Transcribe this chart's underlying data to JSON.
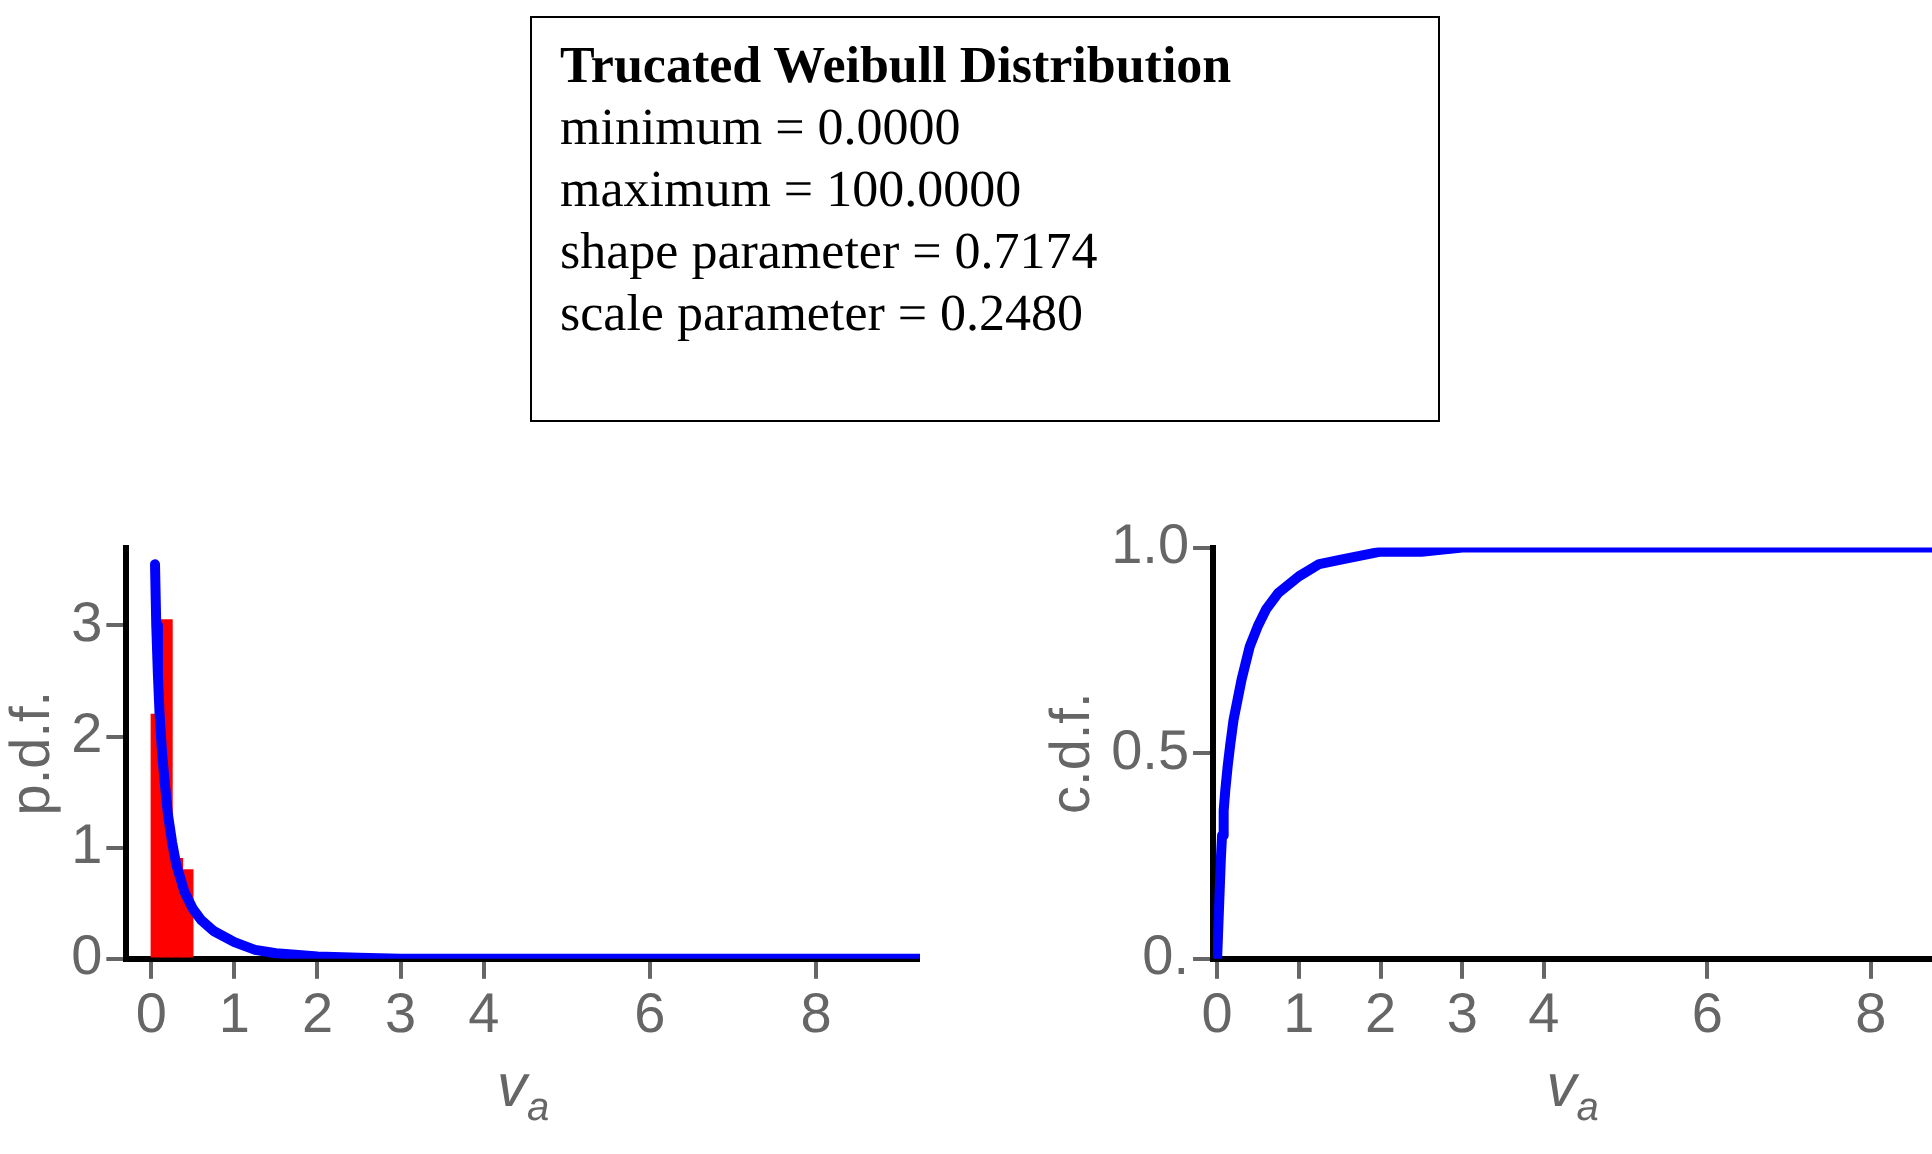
{
  "chart_data": [
    {
      "type": "other",
      "title": "Trucated Weibull Distribution",
      "annotations": [
        "minimum = 0.0000",
        "maximum = 100.0000",
        "shape parameter = 0.7174",
        "scale parameter = 0.2480"
      ]
    },
    {
      "type": "histogram",
      "ylabel": "p.d.f.",
      "xlabel": "v$_{a}$",
      "xlim": [
        -0.3,
        9.25
      ],
      "ylim": [
        0,
        3.7
      ],
      "xticks": [
        0,
        1,
        2,
        3,
        4,
        6,
        8
      ],
      "yticks": [
        0,
        1,
        2,
        3
      ],
      "legend": false,
      "grid": false,
      "series": [
        {
          "type": "histogram",
          "color": "#ff0000",
          "bins": [
            0,
            0.125,
            0.25,
            0.375,
            0.5
          ],
          "values": [
            2.2,
            3.05,
            0.9,
            0.8
          ]
        },
        {
          "type": "line",
          "color": "#0000ff",
          "x": [
            0.045,
            0.06,
            0.08,
            0.1,
            0.13,
            0.16,
            0.2,
            0.25,
            0.3,
            0.4,
            0.5,
            0.6,
            0.75,
            1,
            1.25,
            1.5,
            2,
            2.5,
            3,
            4,
            6,
            8,
            9.25
          ],
          "values": [
            3.55,
            3.0,
            2.55,
            2.2,
            1.85,
            1.6,
            1.3,
            1.05,
            0.85,
            0.6,
            0.45,
            0.35,
            0.25,
            0.15,
            0.08,
            0.05,
            0.02,
            0.01,
            0,
            0,
            0,
            0,
            0
          ]
        }
      ]
    },
    {
      "type": "line",
      "ylabel": "c.d.f.",
      "xlabel": "v$_{a}$",
      "xlim": [
        -0.05,
        8.75
      ],
      "ylim": [
        0,
        1
      ],
      "xticks": [
        0,
        1,
        2,
        3,
        4,
        6,
        8
      ],
      "yticks": [
        {
          "value": 0,
          "label": "0."
        },
        0.5,
        {
          "value": 1,
          "label": "1.0"
        }
      ],
      "legend": false,
      "grid": false,
      "series": [
        {
          "color": "#0000ff",
          "x": [
            0,
            0.045,
            0.06,
            0.08,
            0.1,
            0.13,
            0.16,
            0.2,
            0.25,
            0.3,
            0.4,
            0.5,
            0.6,
            0.75,
            1,
            1.25,
            1.5,
            2,
            2.5,
            3,
            4,
            6,
            8.75
          ],
          "values": [
            0,
            0.24,
            0.3,
            0.36,
            0.41,
            0.47,
            0.52,
            0.58,
            0.63,
            0.68,
            0.76,
            0.81,
            0.85,
            0.89,
            0.93,
            0.96,
            0.97,
            0.99,
            0.99,
            1,
            1,
            1,
            1
          ]
        }
      ]
    }
  ]
}
